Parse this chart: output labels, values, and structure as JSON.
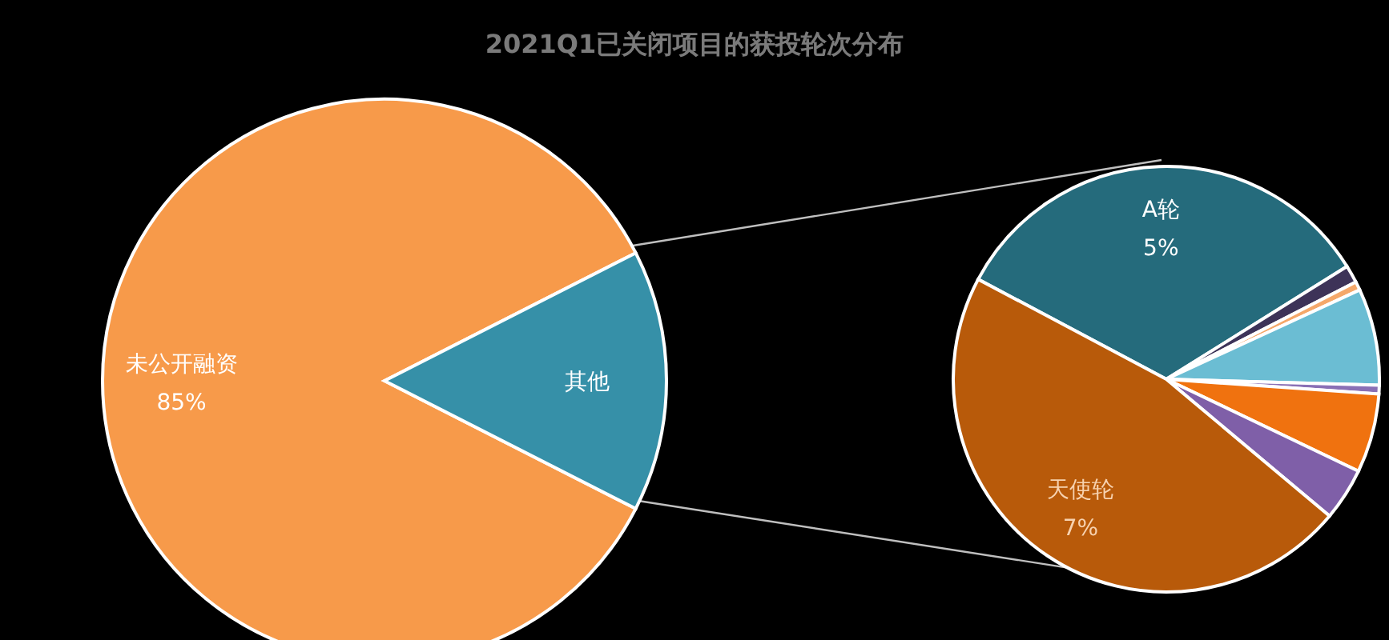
{
  "chart_data": [
    {
      "type": "pie",
      "title": "2021Q1已关闭项目的获投轮次分布",
      "categories": [
        "未公开融资",
        "其他"
      ],
      "values": [
        85,
        15
      ],
      "colors": [
        "#f79a4a",
        "#3690a8"
      ],
      "value_labels": [
        "85%",
        null
      ]
    },
    {
      "type": "pie",
      "categories": [
        "A轮",
        null,
        null,
        null,
        null,
        null,
        null,
        "天使轮"
      ],
      "values": [
        5,
        0.2,
        0.1,
        1.1,
        0.1,
        0.9,
        0.6,
        7
      ],
      "colors": [
        "#256b7c",
        "#3d3358",
        "#f5a86a",
        "#6bbdd3",
        "#8a70b5",
        "#f0720f",
        "#7f5fa8",
        "#b85a0a"
      ],
      "value_labels": [
        "5%",
        null,
        null,
        null,
        null,
        null,
        null,
        "7%"
      ]
    }
  ]
}
